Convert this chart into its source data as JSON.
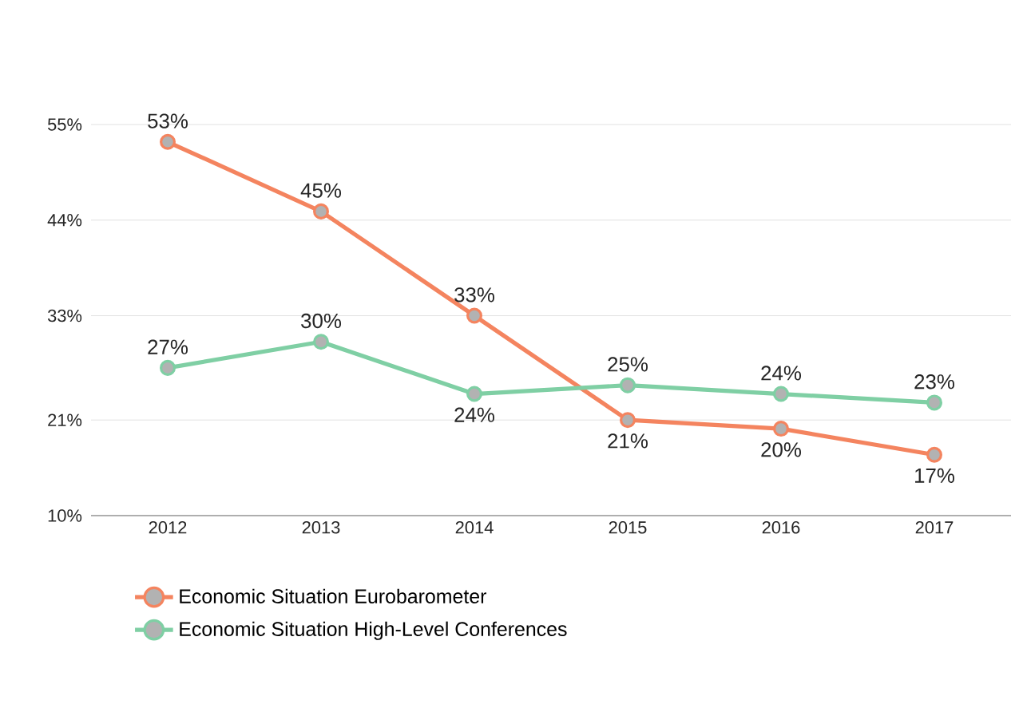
{
  "chart_data": {
    "type": "line",
    "categories": [
      "2012",
      "2013",
      "2014",
      "2015",
      "2016",
      "2017"
    ],
    "series": [
      {
        "name": "Economic Situation Eurobarometer",
        "color": "#f4845f",
        "values": [
          53,
          45,
          33,
          21,
          20,
          17
        ],
        "value_labels": [
          "53%",
          "45%",
          "33%",
          "21%",
          "20%",
          "17%"
        ]
      },
      {
        "name": "Economic Situation High-Level Conferences",
        "color": "#7fcfa4",
        "values": [
          27,
          30,
          24,
          25,
          24,
          23
        ],
        "value_labels": [
          "27%",
          "30%",
          "24%",
          "25%",
          "24%",
          "23%"
        ]
      }
    ],
    "ylim": [
      10,
      55
    ],
    "yticks": [
      {
        "value": 10,
        "label": "10%"
      },
      {
        "value": 21,
        "label": "21%"
      },
      {
        "value": 33,
        "label": "33%"
      },
      {
        "value": 44,
        "label": "44%"
      },
      {
        "value": 55,
        "label": "55%"
      }
    ],
    "grid": "y",
    "legend": "bottom",
    "marker": "circle",
    "line_style": "solid"
  }
}
